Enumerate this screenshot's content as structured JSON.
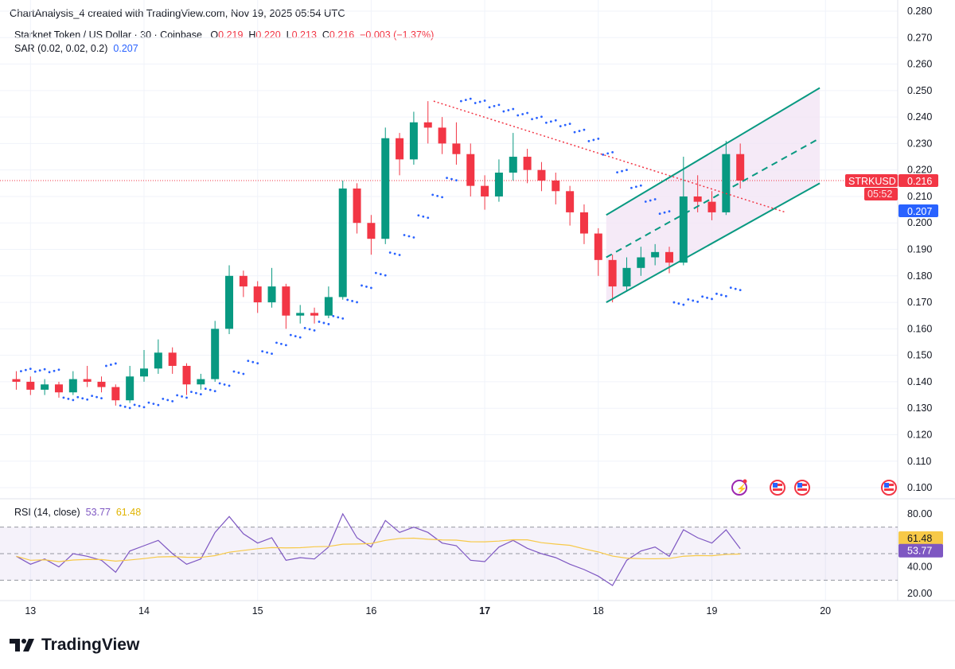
{
  "credit": "ChartAnalysis_4 created with TradingView.com, Nov 19, 2025 05:54 UTC",
  "legend": {
    "symbol": "Starknet Token / US Dollar · 30 · Coinbase",
    "o_label": "O",
    "o": "0.219",
    "h_label": "H",
    "h": "0.220",
    "l_label": "L",
    "l": "0.213",
    "c_label": "C",
    "c": "0.216",
    "change": "−0.003 (−1.37%)",
    "sar_label": "SAR (0.02, 0.02, 0.2)",
    "sar_value": "0.207"
  },
  "rsi_legend": {
    "label": "RSI (14, close)",
    "value": "53.77",
    "ma_value": "61.48"
  },
  "price_tags": {
    "symbol": "STRKUSD",
    "price": "0.216",
    "countdown": "05:52",
    "sar": "0.207",
    "rsi": "53.77",
    "rsi_ma": "61.48"
  },
  "colors": {
    "up": "#089981",
    "down": "#f23645",
    "sar": "#2962ff",
    "rsi": "#7e57c2",
    "rsi_ma": "#f7c948",
    "channel": "#089981",
    "resistance": "#f23645",
    "channel_fill": "#f3e5f5"
  },
  "icons": [
    "lightning-event-icon",
    "us-flag-icon",
    "us-flag-icon",
    "us-flag-icon"
  ],
  "logo_text": "TradingView",
  "chart_data": {
    "type": "candlestick",
    "price_axis": {
      "ticks": [
        "0.280",
        "0.270",
        "0.260",
        "0.250",
        "0.240",
        "0.230",
        "0.220",
        "0.210",
        "0.200",
        "0.190",
        "0.180",
        "0.170",
        "0.160",
        "0.150",
        "0.140",
        "0.130",
        "0.120",
        "0.110",
        "0.100"
      ],
      "range": [
        0.1,
        0.28
      ]
    },
    "x_axis": {
      "ticks": [
        "13",
        "14",
        "15",
        "16",
        "17",
        "18",
        "19",
        "20"
      ],
      "bold": "17"
    },
    "sar_params": [
      0.02,
      0.02,
      0.2
    ],
    "candles": [
      [
        12.875,
        0.141,
        0.144,
        0.137,
        0.14
      ],
      [
        13.0,
        0.14,
        0.142,
        0.135,
        0.137
      ],
      [
        13.125,
        0.137,
        0.141,
        0.135,
        0.139
      ],
      [
        13.25,
        0.139,
        0.14,
        0.134,
        0.136
      ],
      [
        13.375,
        0.136,
        0.144,
        0.135,
        0.141
      ],
      [
        13.5,
        0.141,
        0.146,
        0.138,
        0.14
      ],
      [
        13.625,
        0.14,
        0.142,
        0.136,
        0.138
      ],
      [
        13.75,
        0.138,
        0.139,
        0.131,
        0.133
      ],
      [
        13.875,
        0.133,
        0.146,
        0.132,
        0.142
      ],
      [
        14.0,
        0.142,
        0.152,
        0.14,
        0.145
      ],
      [
        14.125,
        0.145,
        0.156,
        0.143,
        0.151
      ],
      [
        14.25,
        0.151,
        0.153,
        0.143,
        0.146
      ],
      [
        14.375,
        0.146,
        0.147,
        0.135,
        0.139
      ],
      [
        14.5,
        0.139,
        0.143,
        0.137,
        0.141
      ],
      [
        14.625,
        0.141,
        0.163,
        0.14,
        0.16
      ],
      [
        14.75,
        0.16,
        0.184,
        0.158,
        0.18
      ],
      [
        14.875,
        0.18,
        0.182,
        0.172,
        0.176
      ],
      [
        15.0,
        0.176,
        0.178,
        0.166,
        0.17
      ],
      [
        15.125,
        0.17,
        0.183,
        0.168,
        0.176
      ],
      [
        15.25,
        0.176,
        0.177,
        0.16,
        0.165
      ],
      [
        15.375,
        0.165,
        0.169,
        0.162,
        0.166
      ],
      [
        15.5,
        0.166,
        0.168,
        0.162,
        0.165
      ],
      [
        15.625,
        0.165,
        0.176,
        0.164,
        0.172
      ],
      [
        15.75,
        0.172,
        0.216,
        0.171,
        0.213
      ],
      [
        15.875,
        0.213,
        0.215,
        0.196,
        0.2
      ],
      [
        16.0,
        0.2,
        0.203,
        0.188,
        0.194
      ],
      [
        16.125,
        0.194,
        0.236,
        0.192,
        0.232
      ],
      [
        16.25,
        0.232,
        0.234,
        0.218,
        0.224
      ],
      [
        16.375,
        0.224,
        0.242,
        0.222,
        0.238
      ],
      [
        16.5,
        0.238,
        0.246,
        0.23,
        0.236
      ],
      [
        16.625,
        0.236,
        0.24,
        0.226,
        0.23
      ],
      [
        16.75,
        0.23,
        0.238,
        0.222,
        0.226
      ],
      [
        16.875,
        0.226,
        0.23,
        0.21,
        0.214
      ],
      [
        17.0,
        0.214,
        0.218,
        0.205,
        0.21
      ],
      [
        17.125,
        0.21,
        0.224,
        0.208,
        0.219
      ],
      [
        17.25,
        0.219,
        0.234,
        0.216,
        0.225
      ],
      [
        17.375,
        0.225,
        0.228,
        0.215,
        0.22
      ],
      [
        17.5,
        0.22,
        0.223,
        0.212,
        0.216
      ],
      [
        17.625,
        0.216,
        0.219,
        0.207,
        0.212
      ],
      [
        17.75,
        0.212,
        0.214,
        0.199,
        0.204
      ],
      [
        17.875,
        0.204,
        0.207,
        0.192,
        0.196
      ],
      [
        18.0,
        0.196,
        0.198,
        0.18,
        0.186
      ],
      [
        18.125,
        0.186,
        0.188,
        0.17,
        0.176
      ],
      [
        18.25,
        0.176,
        0.187,
        0.174,
        0.183
      ],
      [
        18.375,
        0.183,
        0.191,
        0.18,
        0.187
      ],
      [
        18.5,
        0.187,
        0.192,
        0.184,
        0.189
      ],
      [
        18.625,
        0.189,
        0.191,
        0.181,
        0.185
      ],
      [
        18.75,
        0.185,
        0.225,
        0.184,
        0.21
      ],
      [
        18.875,
        0.21,
        0.218,
        0.204,
        0.208
      ],
      [
        19.0,
        0.208,
        0.212,
        0.201,
        0.204
      ],
      [
        19.125,
        0.204,
        0.231,
        0.203,
        0.226
      ],
      [
        19.25,
        0.226,
        0.23,
        0.213,
        0.216
      ]
    ],
    "current_price": 0.216,
    "trendlines": {
      "resistance": [
        [
          16.55,
          0.246
        ],
        [
          19.65,
          0.204
        ]
      ],
      "channel_upper": [
        [
          18.07,
          0.203
        ],
        [
          19.95,
          0.251
        ]
      ],
      "channel_middle": [
        [
          18.07,
          0.187
        ],
        [
          19.95,
          0.232
        ]
      ],
      "channel_lower": [
        [
          18.07,
          0.17
        ],
        [
          19.95,
          0.215
        ]
      ]
    },
    "rsi": {
      "axis_ticks": [
        "80.00",
        "40.00",
        "20.00"
      ],
      "range": [
        20,
        80
      ],
      "bands": [
        70,
        50,
        30
      ],
      "values": [
        48,
        42,
        46,
        40,
        50,
        48,
        45,
        36,
        52,
        56,
        60,
        50,
        42,
        46,
        66,
        78,
        65,
        58,
        62,
        45,
        47,
        46,
        55,
        80,
        62,
        55,
        75,
        66,
        70,
        66,
        58,
        56,
        45,
        44,
        55,
        60,
        54,
        50,
        47,
        42,
        38,
        33,
        26,
        45,
        52,
        55,
        48,
        68,
        62,
        58,
        68,
        53.77
      ],
      "ma_period": 14
    }
  }
}
